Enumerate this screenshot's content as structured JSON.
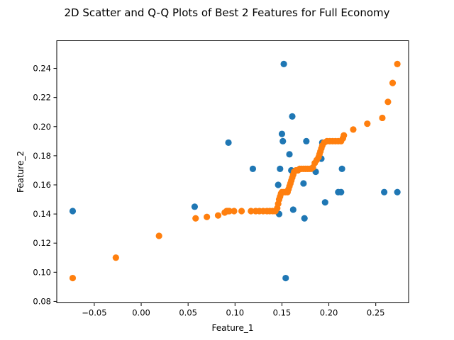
{
  "chart_data": {
    "type": "scatter",
    "title": "2D Scatter and Q-Q Plots of Best 2 Features for Full Economy",
    "xlabel": "Feature_1",
    "ylabel": "Feature_2",
    "xlim": [
      -0.09,
      0.285
    ],
    "ylim": [
      0.079,
      0.259
    ],
    "xticks": [
      -0.05,
      0.0,
      0.05,
      0.1,
      0.15,
      0.2,
      0.25
    ],
    "xtick_labels": [
      "−0.05",
      "0.00",
      "0.05",
      "0.10",
      "0.15",
      "0.20",
      "0.25"
    ],
    "yticks": [
      0.08,
      0.1,
      0.12,
      0.14,
      0.16,
      0.18,
      0.2,
      0.22,
      0.24
    ],
    "ytick_labels": [
      "0.08",
      "0.10",
      "0.12",
      "0.14",
      "0.16",
      "0.18",
      "0.20",
      "0.22",
      "0.24"
    ],
    "grid": false,
    "series": [
      {
        "color": "#1f77b4",
        "points": [
          [
            -0.073,
            0.142
          ],
          [
            0.057,
            0.145
          ],
          [
            0.093,
            0.189
          ],
          [
            0.119,
            0.171
          ],
          [
            0.146,
            0.16
          ],
          [
            0.147,
            0.14
          ],
          [
            0.148,
            0.171
          ],
          [
            0.15,
            0.195
          ],
          [
            0.151,
            0.19
          ],
          [
            0.152,
            0.243
          ],
          [
            0.154,
            0.096
          ],
          [
            0.158,
            0.181
          ],
          [
            0.16,
            0.17
          ],
          [
            0.161,
            0.207
          ],
          [
            0.162,
            0.143
          ],
          [
            0.173,
            0.161
          ],
          [
            0.174,
            0.137
          ],
          [
            0.176,
            0.19
          ],
          [
            0.186,
            0.169
          ],
          [
            0.192,
            0.178
          ],
          [
            0.193,
            0.189
          ],
          [
            0.196,
            0.148
          ],
          [
            0.21,
            0.155
          ],
          [
            0.213,
            0.155
          ],
          [
            0.214,
            0.171
          ],
          [
            0.259,
            0.155
          ],
          [
            0.273,
            0.155
          ]
        ]
      },
      {
        "color": "#ff7f0e",
        "points": [
          [
            -0.073,
            0.096
          ],
          [
            -0.027,
            0.11
          ],
          [
            0.019,
            0.125
          ],
          [
            0.058,
            0.137
          ],
          [
            0.07,
            0.138
          ],
          [
            0.082,
            0.139
          ],
          [
            0.089,
            0.141
          ],
          [
            0.091,
            0.142
          ],
          [
            0.092,
            0.142
          ],
          [
            0.093,
            0.142
          ],
          [
            0.094,
            0.142
          ],
          [
            0.099,
            0.142
          ],
          [
            0.107,
            0.142
          ],
          [
            0.117,
            0.142
          ],
          [
            0.122,
            0.142
          ],
          [
            0.126,
            0.142
          ],
          [
            0.13,
            0.142
          ],
          [
            0.134,
            0.142
          ],
          [
            0.137,
            0.142
          ],
          [
            0.14,
            0.142
          ],
          [
            0.143,
            0.142
          ],
          [
            0.145,
            0.144
          ],
          [
            0.146,
            0.147
          ],
          [
            0.147,
            0.15
          ],
          [
            0.148,
            0.152
          ],
          [
            0.149,
            0.154
          ],
          [
            0.15,
            0.155
          ],
          [
            0.152,
            0.155
          ],
          [
            0.154,
            0.155
          ],
          [
            0.156,
            0.155
          ],
          [
            0.157,
            0.157
          ],
          [
            0.158,
            0.159
          ],
          [
            0.159,
            0.161
          ],
          [
            0.16,
            0.163
          ],
          [
            0.161,
            0.165
          ],
          [
            0.162,
            0.167
          ],
          [
            0.163,
            0.169
          ],
          [
            0.165,
            0.17
          ],
          [
            0.167,
            0.17
          ],
          [
            0.169,
            0.171
          ],
          [
            0.171,
            0.171
          ],
          [
            0.173,
            0.171
          ],
          [
            0.175,
            0.171
          ],
          [
            0.177,
            0.171
          ],
          [
            0.179,
            0.171
          ],
          [
            0.181,
            0.171
          ],
          [
            0.183,
            0.172
          ],
          [
            0.185,
            0.175
          ],
          [
            0.187,
            0.177
          ],
          [
            0.189,
            0.179
          ],
          [
            0.19,
            0.181
          ],
          [
            0.191,
            0.183
          ],
          [
            0.192,
            0.185
          ],
          [
            0.193,
            0.187
          ],
          [
            0.195,
            0.189
          ],
          [
            0.198,
            0.19
          ],
          [
            0.201,
            0.19
          ],
          [
            0.204,
            0.19
          ],
          [
            0.207,
            0.19
          ],
          [
            0.21,
            0.19
          ],
          [
            0.213,
            0.19
          ],
          [
            0.215,
            0.192
          ],
          [
            0.216,
            0.194
          ],
          [
            0.226,
            0.198
          ],
          [
            0.241,
            0.202
          ],
          [
            0.257,
            0.206
          ],
          [
            0.263,
            0.217
          ],
          [
            0.268,
            0.23
          ],
          [
            0.273,
            0.243
          ]
        ]
      }
    ]
  }
}
